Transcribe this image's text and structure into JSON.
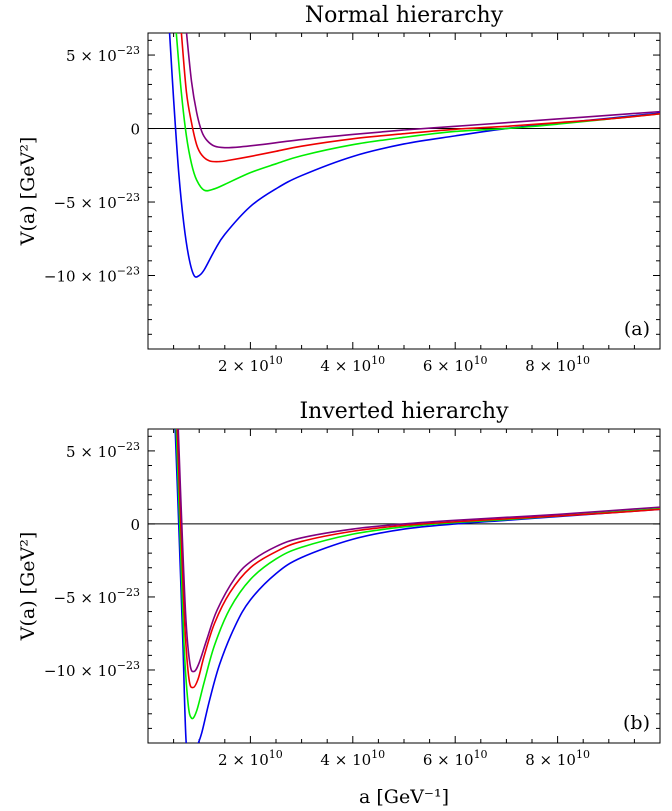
{
  "chart_data": [
    {
      "type": "line",
      "title": "Normal hierarchy",
      "panel_label": "(a)",
      "xlabel": "",
      "ylabel": "V(a) [GeV²]",
      "xlim": [
        0,
        100000000000.0
      ],
      "ylim": [
        -1.5e-22,
        6.5e-23
      ],
      "grid": false,
      "x_ticks": [
        {
          "value": 20000000000.0,
          "mantissa": "2",
          "exp": "10"
        },
        {
          "value": 40000000000.0,
          "mantissa": "4",
          "exp": "10"
        },
        {
          "value": 60000000000.0,
          "mantissa": "6",
          "exp": "10"
        },
        {
          "value": 80000000000.0,
          "mantissa": "8",
          "exp": "10"
        }
      ],
      "y_ticks": [
        {
          "value": 5e-23,
          "mantissa": "5",
          "exp": "−23"
        },
        {
          "value": 0,
          "mantissa": "0",
          "exp": ""
        },
        {
          "value": -5e-23,
          "mantissa": "−5",
          "exp": "−23"
        },
        {
          "value": -1e-22,
          "mantissa": "−10",
          "exp": "−23"
        }
      ],
      "series": [
        {
          "color": "#0000ee",
          "x": [
            4200000000.0,
            5000000000.0,
            6000000000.0,
            7000000000.0,
            8000000000.0,
            9000000000.0,
            10000000000.0,
            11000000000.0,
            13000000000.0,
            15000000000.0,
            20000000000.0,
            25000000000.0,
            30000000000.0,
            40000000000.0,
            50000000000.0,
            60000000000.0,
            70000000000.0,
            80000000000.0,
            90000000000.0,
            100000000000.0
          ],
          "y": [
            6.6e-23,
            2e-23,
            -3e-23,
            -6.5e-23,
            -8.8e-23,
            -1e-22,
            -1e-22,
            -9.6e-23,
            -8.3e-23,
            -7.2e-23,
            -5.3e-23,
            -4.1e-23,
            -3.2e-23,
            -1.9e-23,
            -1.05e-23,
            -5e-24,
            0,
            3.5e-24,
            7e-24,
            1.05e-23
          ]
        },
        {
          "color": "#00ee00",
          "x": [
            5500000000.0,
            6500000000.0,
            7500000000.0,
            8500000000.0,
            9500000000.0,
            11000000000.0,
            13000000000.0,
            15000000000.0,
            20000000000.0,
            25000000000.0,
            30000000000.0,
            40000000000.0,
            50000000000.0,
            60000000000.0,
            70000000000.0,
            80000000000.0,
            90000000000.0,
            100000000000.0
          ],
          "y": [
            6.6e-23,
            2.5e-23,
            -5e-24,
            -2.4e-23,
            -3.5e-23,
            -4.2e-23,
            -4.1e-23,
            -3.8e-23,
            -3e-23,
            -2.4e-23,
            -1.85e-23,
            -1.1e-23,
            -6e-24,
            -2e-24,
            0,
            3e-24,
            6.5e-24,
            1e-23
          ]
        },
        {
          "color": "#ee0000",
          "x": [
            6500000000.0,
            7500000000.0,
            8500000000.0,
            9500000000.0,
            10500000000.0,
            12000000000.0,
            14000000000.0,
            16000000000.0,
            20000000000.0,
            25000000000.0,
            30000000000.0,
            40000000000.0,
            50000000000.0,
            60000000000.0,
            70000000000.0,
            80000000000.0,
            90000000000.0,
            100000000000.0
          ],
          "y": [
            6.6e-23,
            2.5e-23,
            4e-24,
            -1.1e-23,
            -1.8e-23,
            -2.2e-23,
            -2.25e-23,
            -2.15e-23,
            -1.9e-23,
            -1.55e-23,
            -1.2e-23,
            -7e-24,
            -3.5e-24,
            -5e-25,
            1.5e-24,
            4e-24,
            6.5e-24,
            1e-23
          ]
        },
        {
          "color": "#800080",
          "x": [
            7500000000.0,
            8500000000.0,
            9500000000.0,
            10500000000.0,
            11500000000.0,
            13000000000.0,
            15000000000.0,
            18000000000.0,
            22000000000.0,
            30000000000.0,
            40000000000.0,
            50000000000.0,
            60000000000.0,
            70000000000.0,
            80000000000.0,
            90000000000.0,
            100000000000.0
          ],
          "y": [
            6.6e-23,
            3.2e-23,
            1.1e-23,
            -2e-24,
            -8e-24,
            -1.2e-23,
            -1.3e-23,
            -1.25e-23,
            -1.1e-23,
            -7.5e-24,
            -4e-24,
            -1e-24,
            1.5e-24,
            4e-24,
            6.5e-24,
            9e-24,
            1.15e-23
          ]
        }
      ]
    },
    {
      "type": "line",
      "title": "Inverted hierarchy",
      "panel_label": "(b)",
      "xlabel": "a [GeV⁻¹]",
      "ylabel": "V(a) [GeV²]",
      "xlim": [
        0,
        100000000000.0
      ],
      "ylim": [
        -1.5e-22,
        6.5e-23
      ],
      "grid": false,
      "x_ticks": [
        {
          "value": 20000000000.0,
          "mantissa": "2",
          "exp": "10"
        },
        {
          "value": 40000000000.0,
          "mantissa": "4",
          "exp": "10"
        },
        {
          "value": 60000000000.0,
          "mantissa": "6",
          "exp": "10"
        },
        {
          "value": 80000000000.0,
          "mantissa": "8",
          "exp": "10"
        }
      ],
      "y_ticks": [
        {
          "value": 5e-23,
          "mantissa": "5",
          "exp": "−23"
        },
        {
          "value": 0,
          "mantissa": "0",
          "exp": ""
        },
        {
          "value": -5e-23,
          "mantissa": "−5",
          "exp": "−23"
        },
        {
          "value": -1e-22,
          "mantissa": "−10",
          "exp": "−23"
        }
      ],
      "series": [
        {
          "color": "#0000ee",
          "x": [
            5300000000.0,
            6000000000.0,
            6800000000.0,
            7500000000.0,
            8500000000.0,
            9500000000.0,
            10500000000.0,
            12000000000.0,
            14000000000.0,
            17000000000.0,
            20000000000.0,
            25000000000.0,
            30000000000.0,
            40000000000.0,
            50000000000.0,
            60000000000.0,
            70000000000.0,
            80000000000.0,
            90000000000.0,
            100000000000.0
          ],
          "y": [
            6.6e-23,
            0,
            -8e-23,
            -1.52e-22,
            -1.52e-22,
            -1.52e-22,
            -1.43e-22,
            -1.21e-22,
            -9.6e-23,
            -7e-23,
            -5.2e-23,
            -3.4e-23,
            -2.3e-23,
            -1.05e-23,
            -3.5e-24,
            0,
            2.5e-24,
            5e-24,
            7.5e-24,
            1e-23
          ]
        },
        {
          "color": "#00ee00",
          "x": [
            5500000000.0,
            6200000000.0,
            7000000000.0,
            7800000000.0,
            8500000000.0,
            9500000000.0,
            11000000000.0,
            13000000000.0,
            16000000000.0,
            20000000000.0,
            25000000000.0,
            30000000000.0,
            40000000000.0,
            50000000000.0,
            60000000000.0,
            70000000000.0,
            80000000000.0,
            90000000000.0,
            100000000000.0
          ],
          "y": [
            6.6e-23,
            0,
            -8e-23,
            -1.22e-22,
            -1.33e-22,
            -1.28e-22,
            -1.08e-22,
            -8.3e-23,
            -5.8e-23,
            -3.8e-23,
            -2.4e-23,
            -1.6e-23,
            -7e-24,
            -2e-24,
            1e-24,
            3e-24,
            5.5e-24,
            8e-24,
            1.05e-23
          ]
        },
        {
          "color": "#ee0000",
          "x": [
            5700000000.0,
            6400000000.0,
            7200000000.0,
            8000000000.0,
            8800000000.0,
            9800000000.0,
            11000000000.0,
            13000000000.0,
            16000000000.0,
            20000000000.0,
            25000000000.0,
            30000000000.0,
            40000000000.0,
            50000000000.0,
            60000000000.0,
            70000000000.0,
            80000000000.0,
            90000000000.0,
            100000000000.0
          ],
          "y": [
            6.6e-23,
            0,
            -7e-23,
            -1.06e-22,
            -1.12e-22,
            -1.06e-22,
            -9e-23,
            -6.8e-23,
            -4.7e-23,
            -3e-23,
            -1.9e-23,
            -1.2e-23,
            -5e-24,
            -1e-24,
            1.5e-24,
            3.5e-24,
            5.5e-24,
            7.5e-24,
            1e-23
          ]
        },
        {
          "color": "#800080",
          "x": [
            5900000000.0,
            6600000000.0,
            7400000000.0,
            8200000000.0,
            9000000000.0,
            10000000000.0,
            11500000000.0,
            13500000000.0,
            17000000000.0,
            20000000000.0,
            25000000000.0,
            30000000000.0,
            40000000000.0,
            50000000000.0,
            60000000000.0,
            70000000000.0,
            80000000000.0,
            90000000000.0,
            100000000000.0
          ],
          "y": [
            6.6e-23,
            0,
            -6.5e-23,
            -9.6e-23,
            -1.01e-22,
            -9.5e-23,
            -7.9e-23,
            -5.9e-23,
            -3.7e-23,
            -2.6e-23,
            -1.55e-23,
            -9.5e-24,
            -3.5e-24,
            0,
            2.5e-24,
            4.5e-24,
            6.5e-24,
            9e-24,
            1.15e-23
          ]
        }
      ]
    }
  ]
}
